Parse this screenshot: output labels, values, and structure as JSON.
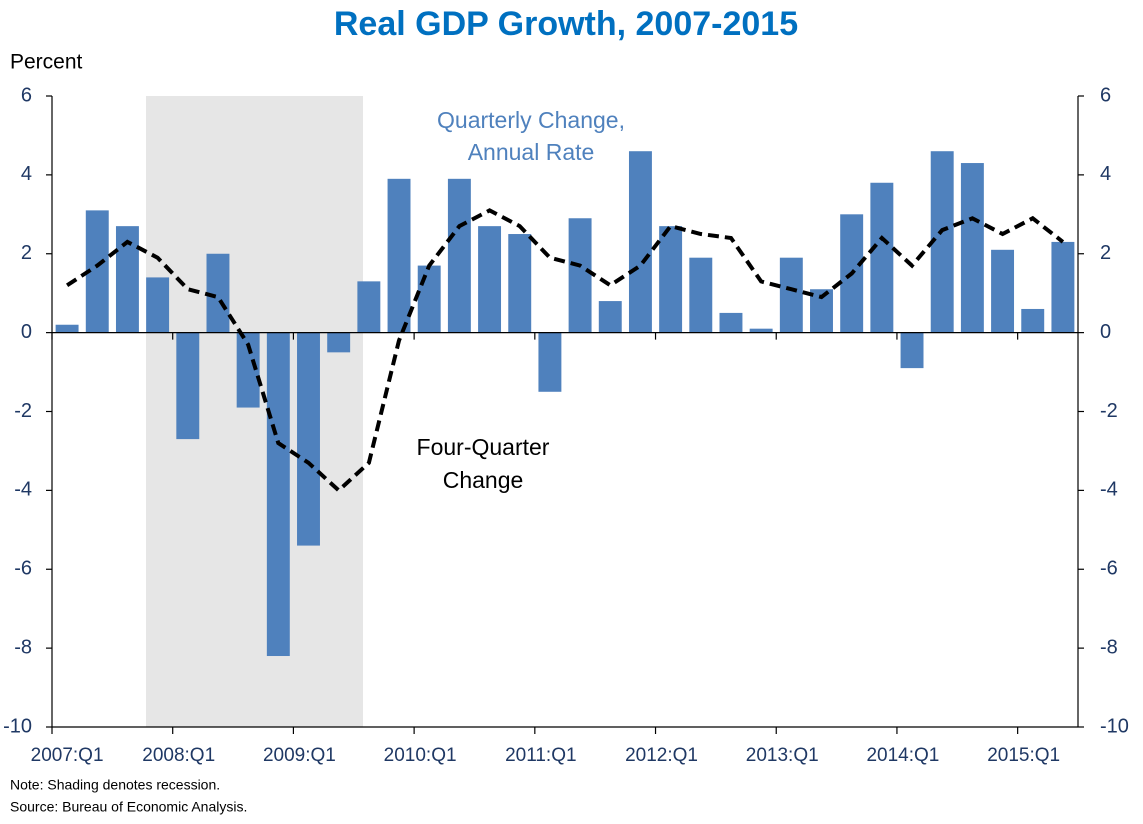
{
  "chart_data": {
    "type": "bar_line",
    "title": "Real GDP Growth, 2007-2015",
    "y_axis_label": "Percent",
    "categories": [
      "2007:Q1",
      null,
      null,
      null,
      "2008:Q1",
      null,
      null,
      null,
      "2009:Q1",
      null,
      null,
      null,
      "2010:Q1",
      null,
      null,
      null,
      "2011:Q1",
      null,
      null,
      null,
      "2012:Q1",
      null,
      null,
      null,
      "2013:Q1",
      null,
      null,
      null,
      "2014:Q1",
      null,
      null,
      null,
      "2015:Q1",
      null
    ],
    "series": [
      {
        "type": "bar",
        "label_lines": [
          "Quarterly Change,",
          "Annual Rate"
        ],
        "color": "#4f81bd",
        "values": [
          0.2,
          3.1,
          2.7,
          1.4,
          -2.7,
          2.0,
          -1.9,
          -8.2,
          -5.4,
          -0.5,
          1.3,
          3.9,
          1.7,
          3.9,
          2.7,
          2.5,
          -1.5,
          2.9,
          0.8,
          4.6,
          2.7,
          1.9,
          0.5,
          0.1,
          1.9,
          1.1,
          3.0,
          3.8,
          -0.9,
          4.6,
          4.3,
          2.1,
          0.6,
          2.3
        ]
      },
      {
        "type": "line",
        "label_lines": [
          "Four-Quarter",
          "Change"
        ],
        "color": "#000000",
        "dashed": true,
        "values": [
          1.2,
          1.7,
          2.3,
          1.9,
          1.1,
          0.9,
          -0.3,
          -2.8,
          -3.3,
          -4.0,
          -3.3,
          -0.2,
          1.7,
          2.7,
          3.1,
          2.7,
          1.9,
          1.7,
          1.2,
          1.7,
          2.7,
          2.5,
          2.4,
          1.3,
          1.1,
          0.9,
          1.5,
          2.4,
          1.7,
          2.6,
          2.9,
          2.5,
          2.9,
          2.3
        ]
      }
    ],
    "ylim": [
      -10,
      6
    ],
    "yticks": [
      -10,
      -8,
      -6,
      -4,
      -2,
      0,
      2,
      4,
      6
    ],
    "y2lim": [
      -10,
      6
    ],
    "y2ticks": [
      -10,
      -8,
      -6,
      -4,
      -2,
      0,
      2,
      4,
      6
    ],
    "notes": [
      "Note: Shading denotes recession.",
      "Source: Bureau of Economic Analysis."
    ]
  }
}
